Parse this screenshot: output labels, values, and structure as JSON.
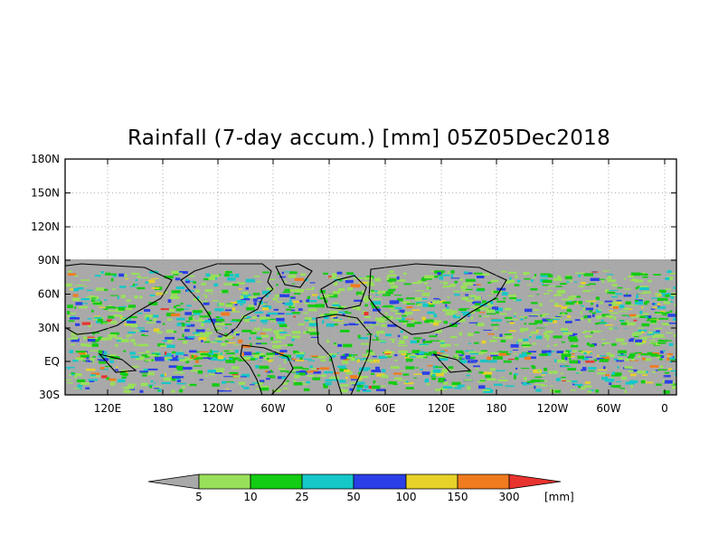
{
  "title": "Rainfall (7-day accum.) [mm] 05Z05Dec2018",
  "map": {
    "y_ticks": [
      "180N",
      "150N",
      "120N",
      "90N",
      "60N",
      "30N",
      "EQ",
      "30S"
    ],
    "x_ticks": [
      "120E",
      "180",
      "120W",
      "60W",
      "0",
      "60E",
      "120E",
      "180",
      "120W",
      "60W",
      "0"
    ],
    "no_data_color": "#ffffff",
    "land_base_color": "#a9a9a9",
    "grid": "dotted"
  },
  "colorbar": {
    "unit": "[mm]",
    "labels": [
      "5",
      "10",
      "25",
      "50",
      "100",
      "150",
      "300"
    ],
    "colors": [
      "#a9a9a9",
      "#99e05a",
      "#13cc13",
      "#15c7c7",
      "#2a3fe6",
      "#e6d229",
      "#f07b1e",
      "#e8342f"
    ]
  }
}
